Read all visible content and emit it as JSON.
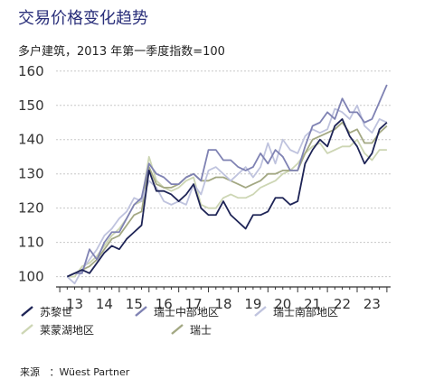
{
  "header": {
    "title": "交易价格变化趋势",
    "subtitle": "多户建筑，2013 年第一季度指数=100"
  },
  "source": {
    "label": "来源",
    "value": "：Wüest Partner"
  },
  "chart_data": {
    "type": "line",
    "title": "交易价格变化趋势",
    "subtitle": "多户建筑，2013 年第一季度指数=100",
    "xlabel": "",
    "ylabel": "",
    "x_tick_labels": [
      "13",
      "14",
      "15",
      "16",
      "17",
      "18",
      "19",
      "20",
      "21",
      "22",
      "23"
    ],
    "y_ticks": [
      100,
      110,
      120,
      130,
      140,
      150,
      160
    ],
    "ylim": [
      97,
      161
    ],
    "grid": "horizontal",
    "legend_position": "bottom",
    "x": [
      2013.0,
      2013.25,
      2013.5,
      2013.75,
      2014.0,
      2014.25,
      2014.5,
      2014.75,
      2015.0,
      2015.25,
      2015.5,
      2015.75,
      2016.0,
      2016.25,
      2016.5,
      2016.75,
      2017.0,
      2017.25,
      2017.5,
      2017.75,
      2018.0,
      2018.25,
      2018.5,
      2018.75,
      2019.0,
      2019.25,
      2019.5,
      2019.75,
      2020.0,
      2020.25,
      2020.5,
      2020.75,
      2021.0,
      2021.25,
      2021.5,
      2021.75,
      2022.0,
      2022.25,
      2022.5,
      2022.75,
      2023.0,
      2023.25,
      2023.5,
      2023.75
    ],
    "series": [
      {
        "name": "苏黎世",
        "color": "#1e2456",
        "values": [
          100,
          101,
          102,
          101,
          104,
          107,
          109,
          108,
          111,
          113,
          115,
          131,
          125,
          125,
          124,
          122,
          124,
          127,
          120,
          118,
          118,
          122,
          118,
          116,
          114,
          118,
          118,
          119,
          123,
          123,
          121,
          122,
          133,
          137,
          140,
          138,
          144,
          146,
          141,
          138,
          133,
          136,
          143,
          145
        ]
      },
      {
        "name": "瑞士中部地区",
        "color": "#7f82b3",
        "values": [
          100,
          101,
          101,
          108,
          105,
          110,
          113,
          113,
          117,
          121,
          123,
          133,
          130,
          129,
          127,
          127,
          129,
          130,
          128,
          137,
          137,
          134,
          134,
          132,
          131,
          132,
          136,
          133,
          137,
          135,
          131,
          131,
          138,
          144,
          145,
          148,
          146,
          152,
          148,
          148,
          145,
          146,
          151,
          156
        ]
      },
      {
        "name": "瑞士南部地区",
        "color": "#bfc3de",
        "values": [
          100,
          98,
          102,
          105,
          108,
          112,
          114,
          117,
          119,
          123,
          122,
          128,
          126,
          122,
          121,
          122,
          121,
          127,
          124,
          131,
          132,
          130,
          128,
          130,
          132,
          129,
          132,
          139,
          133,
          140,
          137,
          136,
          141,
          143,
          142,
          143,
          149,
          148,
          146,
          150,
          144,
          142,
          146,
          145
        ]
      },
      {
        "name": "莱蒙湖地区",
        "color": "#cdd6b4",
        "values": [
          100,
          100,
          103,
          104,
          106,
          109,
          112,
          114,
          117,
          121,
          122,
          135,
          128,
          126,
          125,
          126,
          128,
          129,
          121,
          120,
          120,
          123,
          124,
          123,
          123,
          124,
          126,
          127,
          128,
          130,
          131,
          133,
          136,
          138,
          139,
          136,
          137,
          138,
          138,
          140,
          136,
          134,
          137,
          137
        ]
      },
      {
        "name": "瑞士",
        "color": "#a3a883",
        "values": [
          100,
          101,
          102,
          103,
          105,
          108,
          111,
          112,
          115,
          118,
          119,
          132,
          127,
          126,
          126,
          127,
          129,
          130,
          128,
          128,
          129,
          129,
          128,
          127,
          126,
          127,
          128,
          130,
          130,
          131,
          131,
          131,
          136,
          140,
          141,
          142,
          143,
          145,
          142,
          143,
          139,
          139,
          142,
          144
        ]
      }
    ]
  }
}
